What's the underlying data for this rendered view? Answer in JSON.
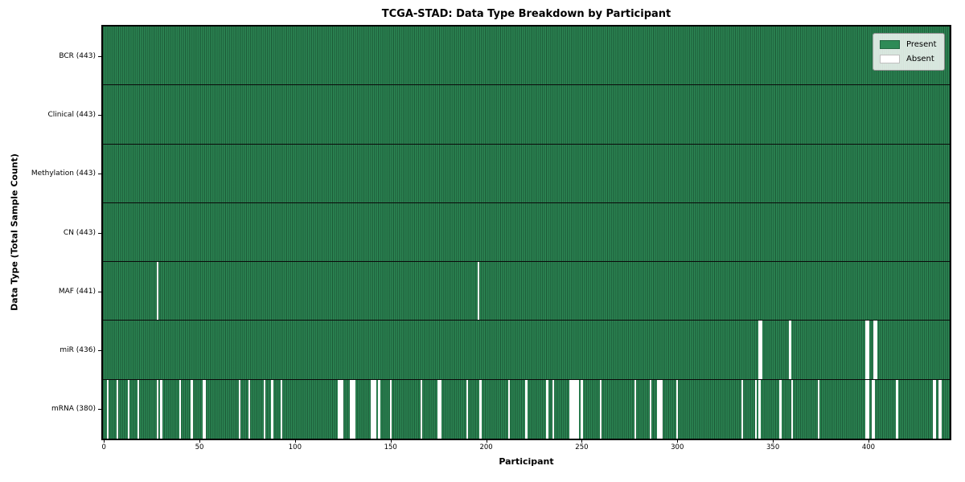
{
  "chart_data": {
    "type": "heatmap",
    "title": "TCGA-STAD: Data Type Breakdown by Participant",
    "xlabel": "Participant",
    "ylabel": "Data Type (Total Sample Count)",
    "n_participants": 443,
    "x_ticks": [
      0,
      50,
      100,
      150,
      200,
      250,
      300,
      350,
      400
    ],
    "grid": "cell-edges-dark",
    "legend_position": "upper right",
    "legend": [
      {
        "label": "Present",
        "color": "#2e8b57"
      },
      {
        "label": "Absent",
        "color": "#ffffff"
      }
    ],
    "colors": {
      "present": "#2e8b57",
      "absent": "#ffffff",
      "cell_edge": "rgba(8,38,22,0.55)",
      "row_separator": "#0a0a0a"
    },
    "rows": [
      {
        "id": "bcr",
        "label": "BCR (443)",
        "present_count": 443,
        "absent_participants": []
      },
      {
        "id": "clinical",
        "label": "Clinical (443)",
        "present_count": 443,
        "absent_participants": []
      },
      {
        "id": "methylation",
        "label": "Methylation (443)",
        "present_count": 443,
        "absent_participants": []
      },
      {
        "id": "cn",
        "label": "CN (443)",
        "present_count": 443,
        "absent_participants": []
      },
      {
        "id": "maf",
        "label": "MAF (441)",
        "present_count": 441,
        "absent_participants": [
          28,
          196
        ]
      },
      {
        "id": "mir",
        "label": "miR (436)",
        "present_count": 436,
        "absent_participants": [
          343,
          344,
          359,
          399,
          400,
          403,
          404
        ]
      },
      {
        "id": "mrna",
        "label": "mRNA (380)",
        "present_count": 380,
        "absent_participants": [
          2,
          7,
          13,
          18,
          28,
          30,
          40,
          46,
          52,
          53,
          71,
          76,
          84,
          88,
          93,
          123,
          124,
          125,
          129,
          130,
          131,
          140,
          141,
          142,
          144,
          150,
          166,
          175,
          176,
          190,
          197,
          212,
          221,
          232,
          235,
          244,
          245,
          246,
          247,
          248,
          250,
          260,
          278,
          286,
          290,
          291,
          292,
          300,
          334,
          341,
          343,
          354,
          360,
          374,
          399,
          400,
          402,
          403,
          415,
          434,
          435,
          437,
          438
        ]
      }
    ]
  }
}
